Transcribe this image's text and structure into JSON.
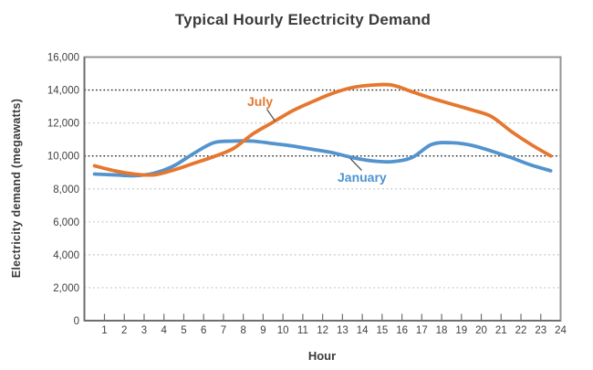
{
  "chart_data": {
    "type": "line",
    "title": "Typical Hourly Electricity Demand",
    "xlabel": "Hour",
    "ylabel": "Electricity demand (megawatts)",
    "x": [
      1,
      2,
      3,
      4,
      5,
      6,
      7,
      8,
      9,
      10,
      11,
      12,
      13,
      14,
      15,
      16,
      17,
      18,
      19,
      20,
      21,
      22,
      23,
      24
    ],
    "x_tick_labels": [
      "1",
      "2",
      "3",
      "4",
      "5",
      "6",
      "7",
      "8",
      "9",
      "10",
      "11",
      "12",
      "13",
      "14",
      "15",
      "16",
      "17",
      "18",
      "19",
      "20",
      "21",
      "22",
      "23",
      "24"
    ],
    "y_ticks": [
      {
        "value": 0,
        "label": "0"
      },
      {
        "value": 2000,
        "label": "2,000"
      },
      {
        "value": 4000,
        "label": "4,000"
      },
      {
        "value": 6000,
        "label": "6,000"
      },
      {
        "value": 8000,
        "label": "8,000"
      },
      {
        "value": 10000,
        "label": "10,000"
      },
      {
        "value": 12000,
        "label": "12,000"
      },
      {
        "value": 14000,
        "label": "14,000"
      },
      {
        "value": 16000,
        "label": "16,000"
      }
    ],
    "ylim": [
      0,
      16000
    ],
    "grid": "horizontal dotted",
    "emphasized_gridlines": [
      10000,
      14000
    ],
    "legend_position": "inline series labels with leader lines",
    "series": [
      {
        "name": "January",
        "color": "#5393CE",
        "values": [
          8900,
          8850,
          8800,
          8950,
          9400,
          10150,
          10800,
          10900,
          10900,
          10750,
          10600,
          10400,
          10200,
          9900,
          9700,
          9650,
          9900,
          10700,
          10800,
          10650,
          10300,
          9900,
          9450,
          9100
        ]
      },
      {
        "name": "July",
        "color": "#E5772E",
        "values": [
          9400,
          9100,
          8900,
          8850,
          9150,
          9550,
          9950,
          10450,
          11350,
          12050,
          12750,
          13300,
          13800,
          14150,
          14300,
          14300,
          13900,
          13500,
          13150,
          12800,
          12400,
          11500,
          10700,
          10000
        ]
      }
    ],
    "colors": {
      "text": "#3A3A3A",
      "tick_text": "#414042",
      "axis": "#6D6E71",
      "border": "#939598",
      "gridline": "#BCBEC0",
      "emphasized_gridline": "#231F20",
      "leader_line": "#58595B"
    }
  }
}
